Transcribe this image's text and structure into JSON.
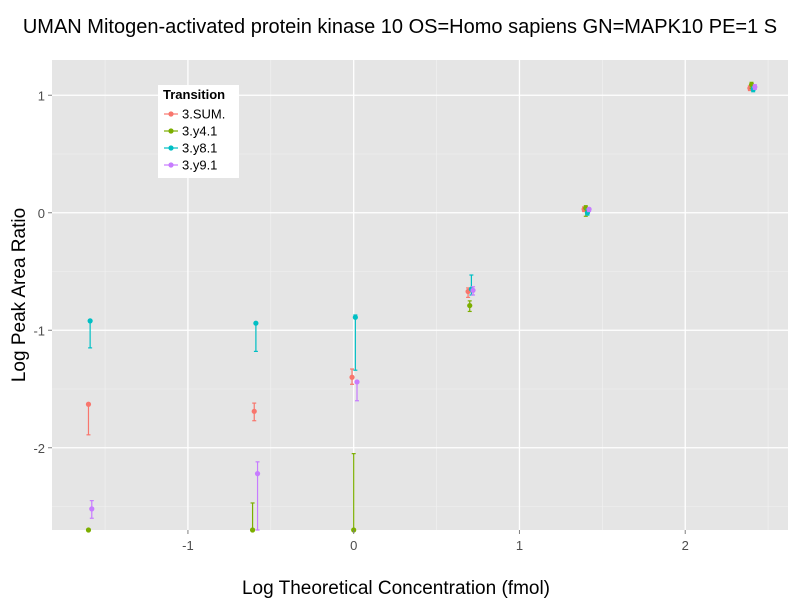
{
  "chart_data": {
    "type": "scatter",
    "title": "UMAN Mitogen-activated protein kinase 10 OS=Homo sapiens GN=MAPK10 PE=1 S",
    "xlabel": "Log Theoretical Concentration (fmol)",
    "ylabel": "Log Peak Area Ratio",
    "xlim": [
      -1.82,
      2.62
    ],
    "ylim": [
      -2.7,
      1.3
    ],
    "x_ticks": [
      -1,
      0,
      1,
      2
    ],
    "x_tick_labels": [
      "-1",
      "0",
      "1",
      "2"
    ],
    "y_ticks": [
      -2,
      -1,
      0,
      1
    ],
    "y_tick_labels": [
      "-2",
      "-1",
      "0",
      "1"
    ],
    "grid": true,
    "legend": {
      "title": "Transition",
      "position": "top-left-inside"
    },
    "series": [
      {
        "name": "3.SUM.",
        "color": "#F8766D",
        "points": [
          {
            "x": -1.6,
            "y": -1.63,
            "ylo": -1.89,
            "yhi": -1.63
          },
          {
            "x": -0.6,
            "y": -1.69,
            "ylo": -1.77,
            "yhi": -1.62
          },
          {
            "x": -0.01,
            "y": -1.4,
            "ylo": -1.46,
            "yhi": -1.33
          },
          {
            "x": 0.69,
            "y": -0.67,
            "ylo": -0.72,
            "yhi": -0.64
          },
          {
            "x": 1.39,
            "y": 0.03,
            "ylo": 0.01,
            "yhi": 0.05
          },
          {
            "x": 2.39,
            "y": 1.06,
            "ylo": 1.04,
            "yhi": 1.08
          }
        ]
      },
      {
        "name": "3.y4.1",
        "color": "#7CAE00",
        "points": [
          {
            "x": -1.6,
            "y": -2.7,
            "ylo": -2.7,
            "yhi": -2.7
          },
          {
            "x": -0.61,
            "y": -2.7,
            "ylo": -2.7,
            "yhi": -2.47
          },
          {
            "x": 0.0,
            "y": -2.7,
            "ylo": -2.7,
            "yhi": -2.05
          },
          {
            "x": 0.7,
            "y": -0.79,
            "ylo": -0.84,
            "yhi": -0.75
          },
          {
            "x": 1.4,
            "y": 0.04,
            "ylo": -0.03,
            "yhi": 0.06
          },
          {
            "x": 2.4,
            "y": 1.09,
            "ylo": 1.06,
            "yhi": 1.11
          }
        ]
      },
      {
        "name": "3.y8.1",
        "color": "#00BFC4",
        "points": [
          {
            "x": -1.59,
            "y": -0.92,
            "ylo": -1.15,
            "yhi": -0.92
          },
          {
            "x": -0.59,
            "y": -0.94,
            "ylo": -1.18,
            "yhi": -0.94
          },
          {
            "x": 0.01,
            "y": -0.89,
            "ylo": -1.34,
            "yhi": -0.87
          },
          {
            "x": 0.71,
            "y": -0.65,
            "ylo": -0.7,
            "yhi": -0.53
          },
          {
            "x": 1.41,
            "y": 0.0,
            "ylo": -0.02,
            "yhi": 0.03
          },
          {
            "x": 2.41,
            "y": 1.05,
            "ylo": 1.03,
            "yhi": 1.07
          }
        ]
      },
      {
        "name": "3.y9.1",
        "color": "#C77CFF",
        "points": [
          {
            "x": -1.58,
            "y": -2.52,
            "ylo": -2.6,
            "yhi": -2.45
          },
          {
            "x": -0.58,
            "y": -2.22,
            "ylo": -2.7,
            "yhi": -2.12
          },
          {
            "x": 0.02,
            "y": -1.44,
            "ylo": -1.6,
            "yhi": -1.44
          },
          {
            "x": 0.72,
            "y": -0.66,
            "ylo": -0.7,
            "yhi": -0.63
          },
          {
            "x": 1.42,
            "y": 0.03,
            "ylo": 0.01,
            "yhi": 0.04
          },
          {
            "x": 2.42,
            "y": 1.07,
            "ylo": 1.05,
            "yhi": 1.09
          }
        ]
      }
    ]
  }
}
